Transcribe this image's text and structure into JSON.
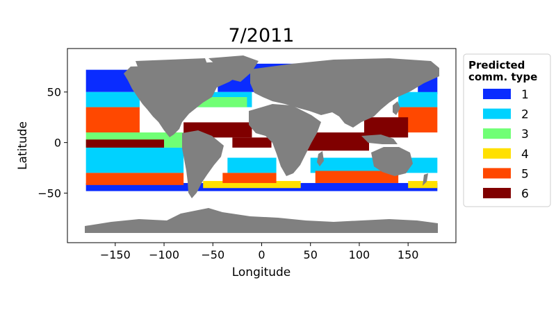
{
  "chart_data": {
    "type": "scatter",
    "title": "7/2011",
    "xlabel": "Longitude",
    "ylabel": "Latitude",
    "xlim": [
      -199,
      199
    ],
    "ylim": [
      -99,
      93
    ],
    "xticks": [
      -150,
      -100,
      -50,
      0,
      50,
      100,
      150
    ],
    "xtick_labels": [
      "−150",
      "−100",
      "−50",
      "0",
      "50",
      "100",
      "150"
    ],
    "yticks": [
      50,
      0,
      -50
    ],
    "ytick_labels": [
      "50",
      "0",
      "−50"
    ],
    "grid": false,
    "land_color": "#808080",
    "legend": {
      "title_line1": "Predicted",
      "title_line2": "comm. type",
      "placement": "outside-right",
      "entries": [
        {
          "label": "1",
          "color": "#0a2cff"
        },
        {
          "label": "2",
          "color": "#00d2ff"
        },
        {
          "label": "3",
          "color": "#70ff75"
        },
        {
          "label": "4",
          "color": "#ffe000"
        },
        {
          "label": "5",
          "color": "#ff4800"
        },
        {
          "label": "6",
          "color": "#800000"
        }
      ]
    },
    "regions": [
      {
        "type": "1",
        "lon": [
          -180,
          -125
        ],
        "lat": [
          50,
          72
        ]
      },
      {
        "type": "1",
        "lon": [
          -45,
          50
        ],
        "lat": [
          50,
          78
        ]
      },
      {
        "type": "1",
        "lon": [
          160,
          180
        ],
        "lat": [
          48,
          70
        ]
      },
      {
        "type": "1",
        "lon": [
          -180,
          180
        ],
        "lat": [
          -48,
          -40
        ]
      },
      {
        "type": "2",
        "lon": [
          -180,
          -125
        ],
        "lat": [
          35,
          50
        ]
      },
      {
        "type": "2",
        "lon": [
          -75,
          -10
        ],
        "lat": [
          35,
          50
        ]
      },
      {
        "type": "2",
        "lon": [
          140,
          180
        ],
        "lat": [
          35,
          50
        ]
      },
      {
        "type": "2",
        "lon": [
          -180,
          -80
        ],
        "lat": [
          -30,
          -5
        ]
      },
      {
        "type": "2",
        "lon": [
          -35,
          15
        ],
        "lat": [
          -30,
          -15
        ]
      },
      {
        "type": "2",
        "lon": [
          50,
          180
        ],
        "lat": [
          -30,
          -15
        ]
      },
      {
        "type": "3",
        "lon": [
          -180,
          -80
        ],
        "lat": [
          -5,
          10
        ]
      },
      {
        "type": "3",
        "lon": [
          -70,
          -15
        ],
        "lat": [
          35,
          45
        ]
      },
      {
        "type": "4",
        "lon": [
          -60,
          40
        ],
        "lat": [
          -45,
          -38
        ]
      },
      {
        "type": "4",
        "lon": [
          150,
          180
        ],
        "lat": [
          -45,
          -38
        ]
      },
      {
        "type": "5",
        "lon": [
          -180,
          -125
        ],
        "lat": [
          10,
          35
        ]
      },
      {
        "type": "5",
        "lon": [
          -180,
          -80
        ],
        "lat": [
          -42,
          -30
        ]
      },
      {
        "type": "5",
        "lon": [
          140,
          180
        ],
        "lat": [
          10,
          35
        ]
      },
      {
        "type": "5",
        "lon": [
          -40,
          15
        ],
        "lat": [
          -40,
          -30
        ]
      },
      {
        "type": "5",
        "lon": [
          55,
          140
        ],
        "lat": [
          -40,
          -28
        ]
      },
      {
        "type": "6",
        "lon": [
          -80,
          -10
        ],
        "lat": [
          5,
          20
        ]
      },
      {
        "type": "6",
        "lon": [
          -30,
          10
        ],
        "lat": [
          -5,
          5
        ]
      },
      {
        "type": "6",
        "lon": [
          45,
          110
        ],
        "lat": [
          -8,
          10
        ]
      },
      {
        "type": "6",
        "lon": [
          105,
          150
        ],
        "lat": [
          5,
          25
        ]
      },
      {
        "type": "6",
        "lon": [
          -180,
          -100
        ],
        "lat": [
          -5,
          3
        ]
      }
    ]
  }
}
